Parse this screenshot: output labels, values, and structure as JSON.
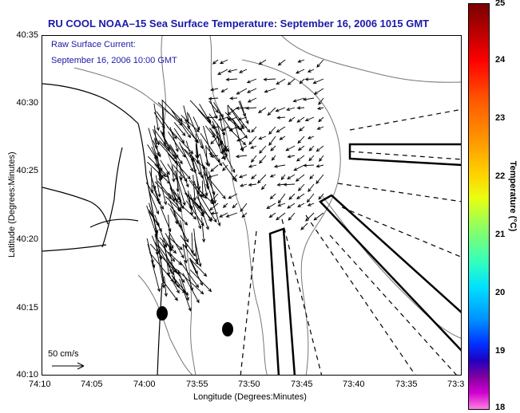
{
  "title": "RU COOL  NOAA–15  Sea Surface Temperature:  September 16, 2006 1015 GMT",
  "annotation": {
    "line1": "Raw Surface Current:",
    "line2": "September 16, 2006 10:00 GMT"
  },
  "axes": {
    "xlabel": "Longitude (Degrees:Minutes)",
    "ylabel": "Latitude (Degrees:Minutes)",
    "xticks": [
      "74:10",
      "74:05",
      "74:00",
      "73:55",
      "73:50",
      "73:45",
      "73:40",
      "73:35",
      "73:3"
    ],
    "yticks": [
      "40:35",
      "40:30",
      "40:25",
      "40:20",
      "40:15",
      "40:10"
    ]
  },
  "colorbar": {
    "label": "Temperature (°C)",
    "ticks": [
      "25",
      "24",
      "23",
      "22",
      "21",
      "20",
      "19",
      "18"
    ],
    "colors": [
      "#7a0000",
      "#ff0000",
      "#ff9900",
      "#e8ff10",
      "#30ffc0",
      "#0090ff",
      "#2000c0",
      "#ff80e0"
    ]
  },
  "scale": {
    "label": "50 cm/s"
  },
  "map": {
    "features": [
      "coastline",
      "bathymetry-contours",
      "current-vectors",
      "radar-beam-lines",
      "shipping-lanes"
    ]
  }
}
